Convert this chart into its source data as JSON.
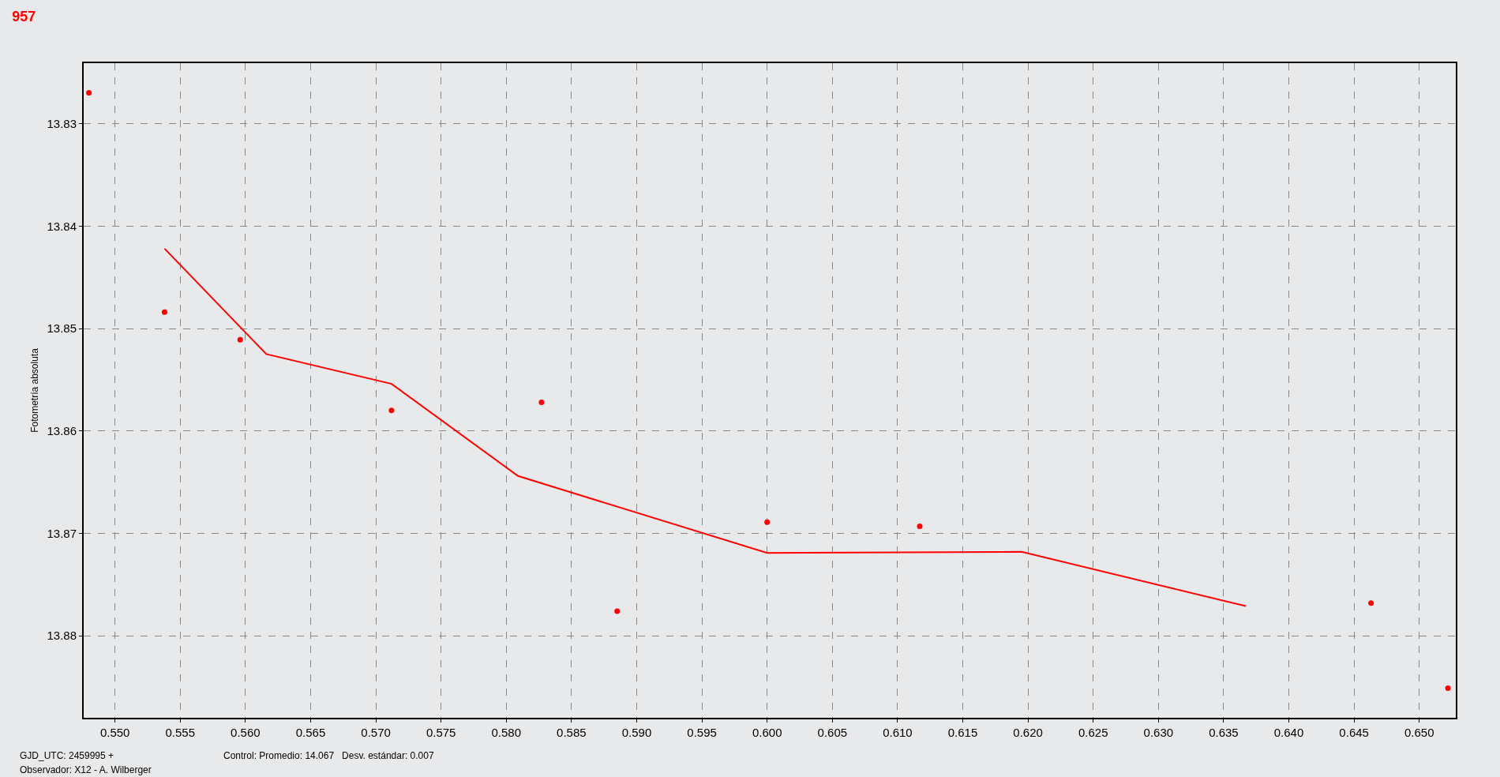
{
  "chart_data": {
    "type": "scatter",
    "title": "957",
    "ylabel": "Fotometría absoluta",
    "annotations": [
      "GJD_UTC: 2459995 +",
      "Observador: X12 - A. Wilberger",
      "Control: Promedio: 14.067   Desv. estándar: 0.007"
    ],
    "xlim": [
      0.5476,
      0.6528
    ],
    "xticks": [
      {
        "value": 0.55,
        "label": "0.550"
      },
      {
        "value": 0.555,
        "label": "0.555"
      },
      {
        "value": 0.56,
        "label": "0.560"
      },
      {
        "value": 0.565,
        "label": "0.565"
      },
      {
        "value": 0.57,
        "label": "0.570"
      },
      {
        "value": 0.575,
        "label": "0.575"
      },
      {
        "value": 0.58,
        "label": "0.580"
      },
      {
        "value": 0.585,
        "label": "0.585"
      },
      {
        "value": 0.59,
        "label": "0.590"
      },
      {
        "value": 0.595,
        "label": "0.595"
      },
      {
        "value": 0.6,
        "label": "0.600"
      },
      {
        "value": 0.605,
        "label": "0.605"
      },
      {
        "value": 0.61,
        "label": "0.610"
      },
      {
        "value": 0.615,
        "label": "0.615"
      },
      {
        "value": 0.62,
        "label": "0.620"
      },
      {
        "value": 0.625,
        "label": "0.625"
      },
      {
        "value": 0.63,
        "label": "0.630"
      },
      {
        "value": 0.635,
        "label": "0.635"
      },
      {
        "value": 0.64,
        "label": "0.640"
      },
      {
        "value": 0.645,
        "label": "0.645"
      },
      {
        "value": 0.65,
        "label": "0.650"
      }
    ],
    "ylim": [
      13.888,
      13.8241
    ],
    "yticks": [
      13.83,
      13.84,
      13.85,
      13.86,
      13.87,
      13.88
    ],
    "grid": true,
    "series": [
      {
        "marker": "circle",
        "color": "#ff0000",
        "x": [
          0.548,
          0.5538,
          0.5596,
          0.5712,
          0.5827,
          0.5885,
          0.6,
          0.6117,
          0.6463,
          0.6522
        ],
        "values": [
          13.827,
          13.8484,
          13.8511,
          13.858,
          13.8572,
          13.8776,
          13.8689,
          13.8693,
          13.8768,
          13.8851
        ]
      },
      {
        "type": "line",
        "marker": "none",
        "line_style": "solid",
        "color": "#ff0000",
        "x": [
          0.5538,
          0.5616,
          0.5712,
          0.5809,
          0.6,
          0.6195,
          0.6367
        ],
        "values": [
          13.8422,
          13.8525,
          13.8554,
          13.8644,
          13.8719,
          13.8718,
          13.8771
        ]
      }
    ]
  }
}
